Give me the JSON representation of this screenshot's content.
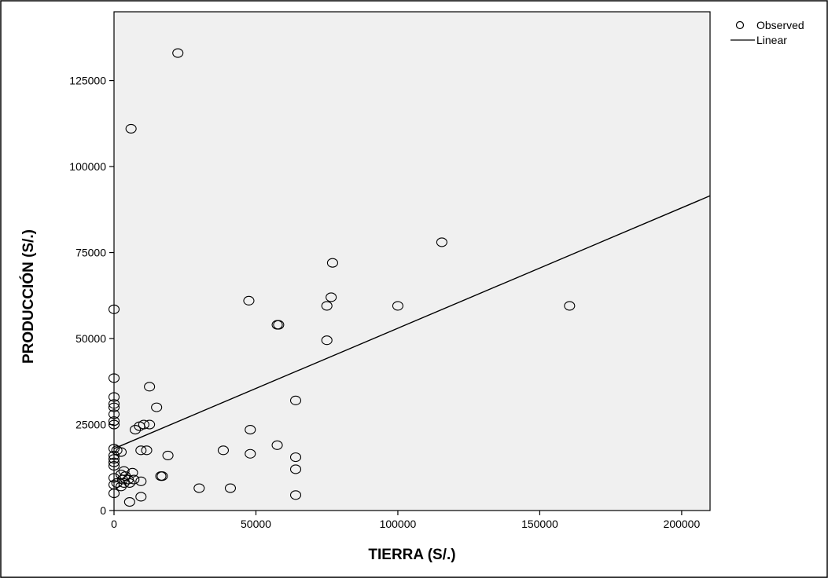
{
  "chart_data": {
    "type": "scatter",
    "xlabel": "TIERRA (S/.)",
    "ylabel": "PRODUCCIÓN (S/.)",
    "xlim": [
      0,
      210000
    ],
    "ylim": [
      0,
      145000
    ],
    "x_ticks": [
      0,
      50000,
      100000,
      150000,
      200000
    ],
    "y_ticks": [
      0,
      25000,
      50000,
      75000,
      100000,
      125000
    ],
    "grid": false,
    "legend": "top-right",
    "plot_background": "#f0f0f0",
    "series": [
      {
        "name": "Observed",
        "marker": "open-circle",
        "color": "#000000",
        "points": [
          [
            22500,
            133000
          ],
          [
            6000,
            111000
          ],
          [
            115500,
            78000
          ],
          [
            77000,
            72000
          ],
          [
            76500,
            62000
          ],
          [
            47500,
            61000
          ],
          [
            75000,
            59500
          ],
          [
            100000,
            59500
          ],
          [
            160500,
            59500
          ],
          [
            0,
            58500
          ],
          [
            57500,
            54000
          ],
          [
            58000,
            54000
          ],
          [
            75000,
            49500
          ],
          [
            0,
            38500
          ],
          [
            12500,
            36000
          ],
          [
            0,
            33000
          ],
          [
            0,
            31000
          ],
          [
            0,
            30000
          ],
          [
            64000,
            32000
          ],
          [
            15000,
            30000
          ],
          [
            0,
            28000
          ],
          [
            0,
            26000
          ],
          [
            0,
            25000
          ],
          [
            9000,
            24500
          ],
          [
            10500,
            25000
          ],
          [
            12500,
            25000
          ],
          [
            7500,
            23500
          ],
          [
            48000,
            23500
          ],
          [
            57500,
            19000
          ],
          [
            0,
            18000
          ],
          [
            1000,
            17500
          ],
          [
            2500,
            17000
          ],
          [
            9500,
            17500
          ],
          [
            11500,
            17500
          ],
          [
            38500,
            17500
          ],
          [
            19000,
            16000
          ],
          [
            48000,
            16500
          ],
          [
            64000,
            15500
          ],
          [
            0,
            16000
          ],
          [
            0,
            15000
          ],
          [
            0,
            14000
          ],
          [
            0,
            13000
          ],
          [
            64000,
            12000
          ],
          [
            3500,
            11500
          ],
          [
            6500,
            11000
          ],
          [
            2500,
            10500
          ],
          [
            4000,
            10000
          ],
          [
            16500,
            10000
          ],
          [
            17000,
            10000
          ],
          [
            0,
            9500
          ],
          [
            3000,
            9000
          ],
          [
            5000,
            9000
          ],
          [
            7000,
            9000
          ],
          [
            9500,
            8500
          ],
          [
            1000,
            8000
          ],
          [
            3500,
            8000
          ],
          [
            5500,
            8000
          ],
          [
            0,
            7500
          ],
          [
            2500,
            7000
          ],
          [
            30000,
            6500
          ],
          [
            41000,
            6500
          ],
          [
            0,
            5000
          ],
          [
            9500,
            4000
          ],
          [
            64000,
            4500
          ],
          [
            5500,
            2500
          ]
        ]
      },
      {
        "name": "Linear",
        "kind": "line",
        "color": "#000000",
        "points": [
          [
            0,
            18000
          ],
          [
            210000,
            91500
          ]
        ]
      }
    ]
  }
}
